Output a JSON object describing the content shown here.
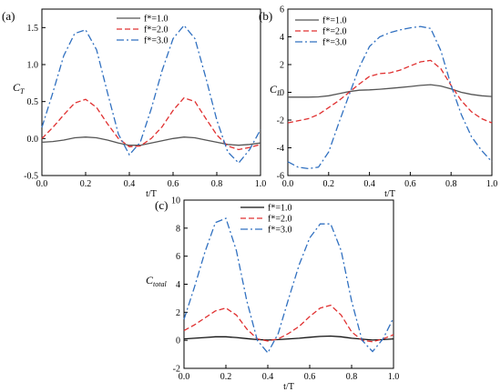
{
  "chart_data": [
    {
      "type": "line",
      "panel_label": "(a)",
      "xlabel": "t/T",
      "ylabel": "C",
      "ylabel_sub": "T",
      "xlim": [
        0,
        1
      ],
      "ylim": [
        -0.5,
        1.75
      ],
      "xticks": [
        "0.0",
        "0.2",
        "0.4",
        "0.6",
        "0.8",
        "1.0"
      ],
      "yticks": [
        "-0.5",
        "0.0",
        "0.5",
        "1.0",
        "1.5"
      ],
      "legend_position": "top-center",
      "series": [
        {
          "name": "f*=1.0",
          "style": "solid",
          "color": "#555555",
          "x": [
            0,
            0.05,
            0.1,
            0.15,
            0.2,
            0.25,
            0.3,
            0.35,
            0.4,
            0.45,
            0.5,
            0.55,
            0.6,
            0.65,
            0.7,
            0.75,
            0.8,
            0.85,
            0.9,
            0.95,
            1.0
          ],
          "y": [
            -0.05,
            -0.04,
            -0.02,
            0.01,
            0.02,
            0.01,
            -0.02,
            -0.06,
            -0.09,
            -0.09,
            -0.06,
            -0.03,
            0.0,
            0.02,
            0.01,
            -0.02,
            -0.05,
            -0.08,
            -0.09,
            -0.08,
            -0.06
          ]
        },
        {
          "name": "f*=2.0",
          "style": "dashed",
          "color": "#e03030",
          "x": [
            0,
            0.05,
            0.1,
            0.15,
            0.2,
            0.25,
            0.3,
            0.35,
            0.4,
            0.45,
            0.5,
            0.55,
            0.6,
            0.65,
            0.7,
            0.75,
            0.8,
            0.85,
            0.9,
            0.95,
            1.0
          ],
          "y": [
            0.0,
            0.15,
            0.32,
            0.48,
            0.53,
            0.42,
            0.2,
            0.0,
            -0.11,
            -0.1,
            0.0,
            0.16,
            0.38,
            0.55,
            0.5,
            0.27,
            0.05,
            -0.1,
            -0.15,
            -0.12,
            -0.08
          ]
        },
        {
          "name": "f*=3.0",
          "style": "dashdot",
          "color": "#3070c0",
          "x": [
            0,
            0.05,
            0.1,
            0.15,
            0.2,
            0.25,
            0.3,
            0.35,
            0.4,
            0.45,
            0.5,
            0.55,
            0.6,
            0.65,
            0.7,
            0.75,
            0.8,
            0.85,
            0.9,
            0.95,
            1.0
          ],
          "y": [
            0.15,
            0.62,
            1.12,
            1.42,
            1.47,
            1.2,
            0.62,
            0.06,
            -0.22,
            -0.05,
            0.4,
            0.92,
            1.35,
            1.53,
            1.35,
            0.82,
            0.25,
            -0.18,
            -0.33,
            -0.15,
            0.12
          ]
        }
      ]
    },
    {
      "type": "line",
      "panel_label": "(b)",
      "xlabel": "t/T",
      "ylabel": "C",
      "ylabel_sub": "L",
      "xlim": [
        0,
        1
      ],
      "ylim": [
        -6,
        6
      ],
      "xticks": [
        "0.0",
        "0.2",
        "0.4",
        "0.6",
        "0.8",
        "1.0"
      ],
      "yticks": [
        "-6",
        "-4",
        "-2",
        "0",
        "2",
        "4",
        "6"
      ],
      "legend_position": "top-left",
      "series": [
        {
          "name": "f*=1.0",
          "style": "solid",
          "color": "#555555",
          "x": [
            0,
            0.05,
            0.1,
            0.15,
            0.2,
            0.25,
            0.3,
            0.35,
            0.4,
            0.45,
            0.5,
            0.55,
            0.6,
            0.65,
            0.7,
            0.75,
            0.8,
            0.85,
            0.9,
            0.95,
            1.0
          ],
          "y": [
            -0.35,
            -0.35,
            -0.35,
            -0.33,
            -0.25,
            -0.1,
            0.05,
            0.15,
            0.18,
            0.22,
            0.28,
            0.35,
            0.42,
            0.5,
            0.55,
            0.45,
            0.25,
            0.0,
            -0.15,
            -0.25,
            -0.3
          ]
        },
        {
          "name": "f*=2.0",
          "style": "dashed",
          "color": "#e03030",
          "x": [
            0,
            0.05,
            0.1,
            0.15,
            0.2,
            0.25,
            0.3,
            0.35,
            0.4,
            0.45,
            0.5,
            0.55,
            0.6,
            0.65,
            0.7,
            0.75,
            0.8,
            0.85,
            0.9,
            0.95,
            1.0
          ],
          "y": [
            -2.2,
            -2.05,
            -1.9,
            -1.6,
            -1.1,
            -0.6,
            0.0,
            0.6,
            1.15,
            1.35,
            1.4,
            1.6,
            1.9,
            2.2,
            2.3,
            1.7,
            0.5,
            -0.6,
            -1.4,
            -1.9,
            -2.2
          ]
        },
        {
          "name": "f*=3.0",
          "style": "dashdot",
          "color": "#3070c0",
          "x": [
            0,
            0.05,
            0.1,
            0.15,
            0.2,
            0.25,
            0.3,
            0.35,
            0.4,
            0.45,
            0.5,
            0.55,
            0.6,
            0.65,
            0.7,
            0.75,
            0.8,
            0.85,
            0.9,
            0.95,
            1.0
          ],
          "y": [
            -5.0,
            -5.4,
            -5.5,
            -5.4,
            -4.3,
            -2.2,
            -0.2,
            1.8,
            3.3,
            4.0,
            4.3,
            4.5,
            4.65,
            4.75,
            4.6,
            3.0,
            0.5,
            -1.6,
            -3.2,
            -4.2,
            -5.0
          ]
        }
      ]
    },
    {
      "type": "line",
      "panel_label": "(c)",
      "xlabel": "t/T",
      "ylabel": "C",
      "ylabel_sub": "total",
      "xlim": [
        0,
        1
      ],
      "ylim": [
        -2,
        10
      ],
      "xticks": [
        "0.0",
        "0.2",
        "0.4",
        "0.6",
        "0.8",
        "1.0"
      ],
      "yticks": [
        "-2",
        "0",
        "2",
        "4",
        "6",
        "8",
        "10"
      ],
      "legend_position": "top-left",
      "series": [
        {
          "name": "f*=1.0",
          "style": "solid",
          "color": "#111111",
          "x": [
            0,
            0.05,
            0.1,
            0.15,
            0.2,
            0.25,
            0.3,
            0.35,
            0.4,
            0.45,
            0.5,
            0.55,
            0.6,
            0.65,
            0.7,
            0.75,
            0.8,
            0.85,
            0.9,
            0.95,
            1.0
          ],
          "y": [
            0.1,
            0.15,
            0.2,
            0.25,
            0.25,
            0.2,
            0.12,
            0.05,
            0.02,
            0.05,
            0.1,
            0.15,
            0.22,
            0.28,
            0.3,
            0.25,
            0.15,
            0.08,
            0.02,
            0.05,
            0.1
          ]
        },
        {
          "name": "f*=2.0",
          "style": "dashed",
          "color": "#e03030",
          "x": [
            0,
            0.05,
            0.1,
            0.15,
            0.2,
            0.25,
            0.3,
            0.35,
            0.4,
            0.45,
            0.5,
            0.55,
            0.6,
            0.65,
            0.7,
            0.75,
            0.8,
            0.85,
            0.9,
            0.95,
            1.0
          ],
          "y": [
            0.7,
            1.1,
            1.6,
            2.1,
            2.3,
            1.8,
            0.8,
            0.1,
            -0.05,
            0.1,
            0.5,
            1.0,
            1.7,
            2.3,
            2.5,
            1.8,
            0.6,
            0.0,
            -0.1,
            0.1,
            0.4
          ]
        },
        {
          "name": "f*=3.0",
          "style": "dashdot",
          "color": "#3070c0",
          "x": [
            0,
            0.05,
            0.1,
            0.15,
            0.2,
            0.25,
            0.3,
            0.35,
            0.4,
            0.45,
            0.5,
            0.55,
            0.6,
            0.65,
            0.7,
            0.75,
            0.8,
            0.85,
            0.9,
            0.95,
            1.0
          ],
          "y": [
            1.5,
            3.8,
            6.3,
            8.4,
            8.7,
            6.4,
            2.8,
            0.0,
            -0.9,
            0.5,
            3.0,
            5.4,
            7.3,
            8.3,
            8.3,
            6.4,
            2.8,
            0.0,
            -0.8,
            0.1,
            1.6
          ]
        }
      ]
    }
  ]
}
